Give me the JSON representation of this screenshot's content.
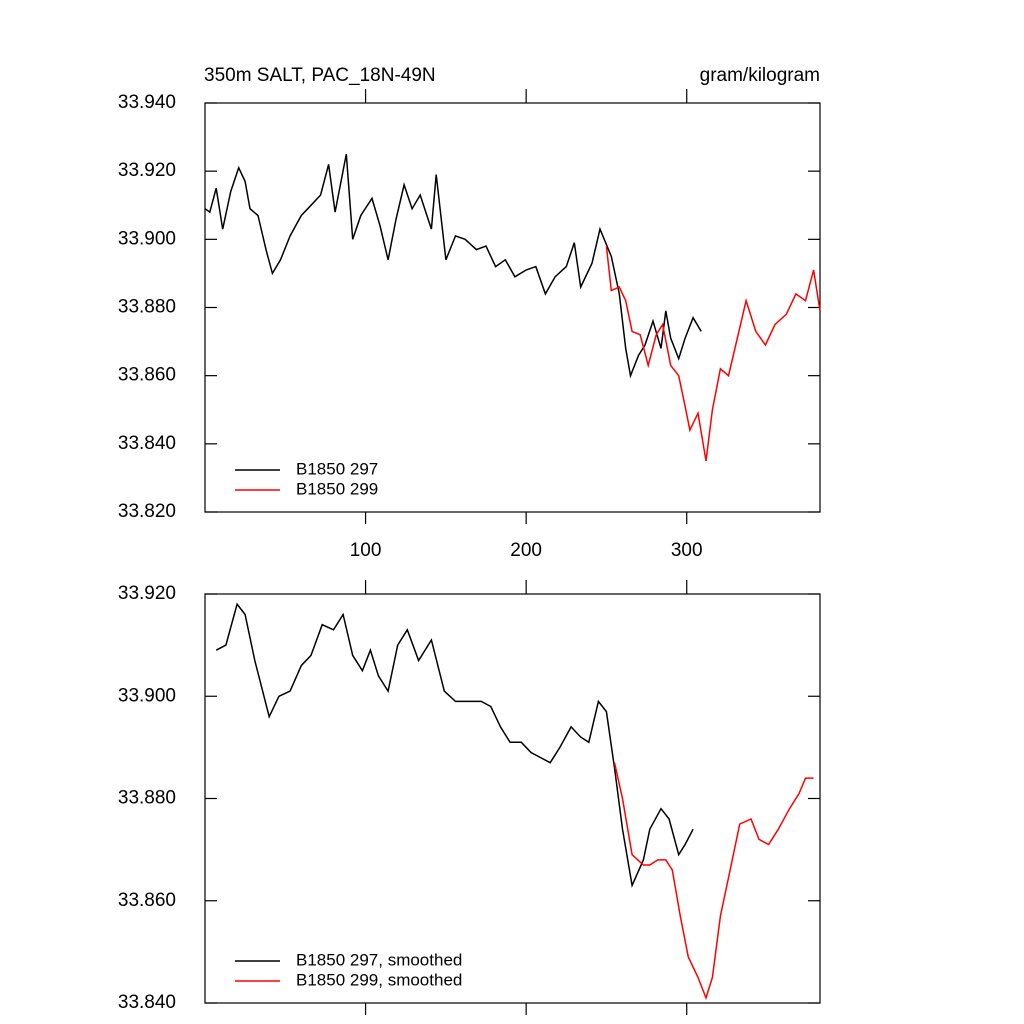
{
  "chart_data": [
    {
      "type": "line",
      "title": "350m SALT, PAC_18N-49N",
      "right_title": "gram/kilogram",
      "xlim": [
        0,
        383
      ],
      "xticks": [
        100,
        200,
        300
      ],
      "ylim": [
        33.82,
        33.94
      ],
      "yticks": [
        {
          "value": 33.82,
          "label": "33.820"
        },
        {
          "value": 33.84,
          "label": "33.840"
        },
        {
          "value": 33.86,
          "label": "33.860"
        },
        {
          "value": 33.88,
          "label": "33.880"
        },
        {
          "value": 33.9,
          "label": "33.900"
        },
        {
          "value": 33.92,
          "label": "33.920"
        },
        {
          "value": 33.94,
          "label": "33.940"
        }
      ],
      "legend": "lower left",
      "series": [
        {
          "name": "B1850 297",
          "color": "#000000",
          "x": [
            0,
            3,
            7,
            11,
            16,
            21,
            25,
            28,
            33,
            38,
            42,
            47,
            53,
            60,
            66,
            72,
            77,
            81,
            88,
            92,
            97,
            104,
            109,
            114,
            119,
            124,
            129,
            134,
            141,
            144,
            150,
            156,
            162,
            169,
            175,
            181,
            187,
            193,
            200,
            206,
            212,
            218,
            225,
            230,
            234,
            241,
            246,
            253,
            258,
            262,
            265,
            270,
            274,
            279,
            284,
            287,
            290,
            295,
            299,
            304,
            309
          ],
          "values": [
            33.909,
            33.908,
            33.915,
            33.903,
            33.914,
            33.921,
            33.917,
            33.909,
            33.907,
            33.897,
            33.89,
            33.894,
            33.901,
            33.907,
            33.91,
            33.913,
            33.922,
            33.908,
            33.925,
            33.9,
            33.907,
            33.912,
            33.904,
            33.894,
            33.906,
            33.916,
            33.909,
            33.913,
            33.903,
            33.919,
            33.894,
            33.901,
            33.9,
            33.897,
            33.898,
            33.892,
            33.894,
            33.889,
            33.891,
            33.892,
            33.884,
            33.889,
            33.892,
            33.899,
            33.886,
            33.893,
            33.903,
            33.895,
            33.884,
            33.868,
            33.86,
            33.866,
            33.869,
            33.876,
            33.868,
            33.879,
            33.871,
            33.865,
            33.871,
            33.877,
            33.873
          ]
        },
        {
          "name": "B1850 299",
          "color": "#ff0000",
          "x": [
            250,
            253,
            258,
            262,
            266,
            271,
            276,
            281,
            285,
            290,
            295,
            299,
            302,
            307,
            312,
            316,
            321,
            326,
            332,
            337,
            343,
            349,
            355,
            362,
            368,
            374,
            379,
            383
          ],
          "values": [
            33.898,
            33.885,
            33.886,
            33.882,
            33.873,
            33.872,
            33.863,
            33.872,
            33.875,
            33.863,
            33.86,
            33.851,
            33.844,
            33.849,
            33.835,
            33.85,
            33.862,
            33.86,
            33.872,
            33.882,
            33.873,
            33.869,
            33.875,
            33.878,
            33.884,
            33.882,
            33.891,
            33.879
          ]
        }
      ]
    },
    {
      "type": "line",
      "xlim": [
        0,
        383
      ],
      "xticks": [
        100,
        200,
        300
      ],
      "ylim": [
        33.84,
        33.92
      ],
      "yticks": [
        {
          "value": 33.84,
          "label": "33.840"
        },
        {
          "value": 33.86,
          "label": "33.860"
        },
        {
          "value": 33.88,
          "label": "33.880"
        },
        {
          "value": 33.9,
          "label": "33.900"
        },
        {
          "value": 33.92,
          "label": "33.920"
        }
      ],
      "legend": "lower left",
      "series": [
        {
          "name": "B1850 297, smoothed",
          "color": "#000000",
          "x": [
            7,
            13,
            20,
            25,
            31,
            40,
            46,
            53,
            60,
            66,
            73,
            80,
            86,
            92,
            98,
            103,
            108,
            114,
            120,
            126,
            133,
            141,
            149,
            156,
            164,
            172,
            178,
            184,
            190,
            197,
            203,
            209,
            215,
            221,
            228,
            234,
            239,
            245,
            250,
            255,
            260,
            266,
            273,
            277,
            284,
            289,
            295,
            299,
            304
          ],
          "values": [
            33.909,
            33.91,
            33.918,
            33.916,
            33.907,
            33.896,
            33.9,
            33.901,
            33.906,
            33.908,
            33.914,
            33.913,
            33.916,
            33.908,
            33.905,
            33.909,
            33.904,
            33.901,
            33.91,
            33.913,
            33.907,
            33.911,
            33.901,
            33.899,
            33.899,
            33.899,
            33.898,
            33.894,
            33.891,
            33.891,
            33.889,
            33.888,
            33.887,
            33.89,
            33.894,
            33.892,
            33.891,
            33.899,
            33.897,
            33.886,
            33.874,
            33.863,
            33.868,
            33.874,
            33.878,
            33.876,
            33.869,
            33.871,
            33.874
          ]
        },
        {
          "name": "B1850 299, smoothed",
          "color": "#ff0000",
          "x": [
            255,
            260,
            266,
            273,
            277,
            282,
            287,
            291,
            296,
            301,
            307,
            312,
            316,
            321,
            327,
            333,
            340,
            345,
            351,
            357,
            364,
            370,
            374,
            379
          ],
          "values": [
            33.887,
            33.88,
            33.869,
            33.867,
            33.867,
            33.868,
            33.868,
            33.866,
            33.857,
            33.849,
            33.845,
            33.841,
            33.845,
            33.857,
            33.866,
            33.875,
            33.876,
            33.872,
            33.871,
            33.874,
            33.878,
            33.881,
            33.884,
            33.884
          ]
        }
      ]
    }
  ]
}
